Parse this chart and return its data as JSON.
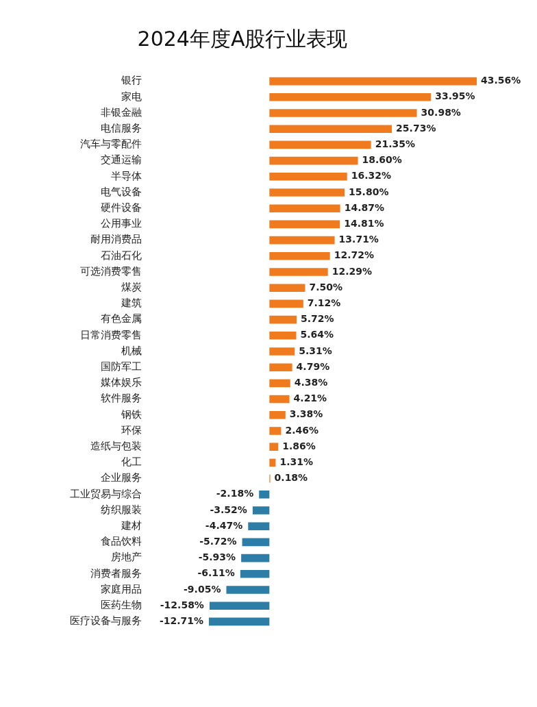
{
  "chart_data": {
    "type": "bar",
    "orientation": "horizontal",
    "title": "2024年度A股行业表现",
    "categories": [
      "银行",
      "家电",
      "非银金融",
      "电信服务",
      "汽车与零配件",
      "交通运输",
      "半导体",
      "电气设备",
      "硬件设备",
      "公用事业",
      "耐用消费品",
      "石油石化",
      "可选消费零售",
      "煤炭",
      "建筑",
      "有色金属",
      "日常消费零售",
      "机械",
      "国防军工",
      "媒体娱乐",
      "软件服务",
      "钢铁",
      "环保",
      "造纸与包装",
      "化工",
      "企业服务",
      "工业贸易与综合",
      "纺织服装",
      "建材",
      "食品饮料",
      "房地产",
      "消费者服务",
      "家庭用品",
      "医药生物",
      "医疗设备与服务"
    ],
    "values": [
      43.56,
      33.95,
      30.98,
      25.73,
      21.35,
      18.6,
      16.32,
      15.8,
      14.87,
      14.81,
      13.71,
      12.72,
      12.29,
      7.5,
      7.12,
      5.72,
      5.64,
      5.31,
      4.79,
      4.38,
      4.21,
      3.38,
      2.46,
      1.86,
      1.31,
      0.18,
      -2.18,
      -3.52,
      -4.47,
      -5.72,
      -5.93,
      -6.11,
      -9.05,
      -12.58,
      -12.71
    ],
    "value_labels": [
      "43.56%",
      "33.95%",
      "30.98%",
      "25.73%",
      "21.35%",
      "18.60%",
      "16.32%",
      "15.80%",
      "14.87%",
      "14.81%",
      "13.71%",
      "12.72%",
      "12.29%",
      "7.50%",
      "7.12%",
      "5.72%",
      "5.64%",
      "5.31%",
      "4.79%",
      "4.38%",
      "4.21%",
      "3.38%",
      "2.46%",
      "1.86%",
      "1.31%",
      "0.18%",
      "-2.18%",
      "-3.52%",
      "-4.47%",
      "-5.72%",
      "-5.93%",
      "-6.11%",
      "-9.05%",
      "-12.58%",
      "-12.71%"
    ],
    "colors": [
      "#f07a1e",
      "#f07a1e",
      "#f07a1e",
      "#f07a1e",
      "#f07a1e",
      "#f07a1e",
      "#f07a1e",
      "#f07a1e",
      "#f07a1e",
      "#f07a1e",
      "#f07a1e",
      "#f07a1e",
      "#f07a1e",
      "#f07a1e",
      "#f07a1e",
      "#f07a1e",
      "#f07a1e",
      "#f07a1e",
      "#f07a1e",
      "#f07a1e",
      "#f07a1e",
      "#f07a1e",
      "#f07a1e",
      "#f07a1e",
      "#f07a1e",
      "#f07a1e",
      "#2d7ea6",
      "#2d7ea6",
      "#2d7ea6",
      "#2d7ea6",
      "#2d7ea6",
      "#2d7ea6",
      "#2d7ea6",
      "#2d7ea6",
      "#2d7ea6"
    ],
    "legend": false
  }
}
